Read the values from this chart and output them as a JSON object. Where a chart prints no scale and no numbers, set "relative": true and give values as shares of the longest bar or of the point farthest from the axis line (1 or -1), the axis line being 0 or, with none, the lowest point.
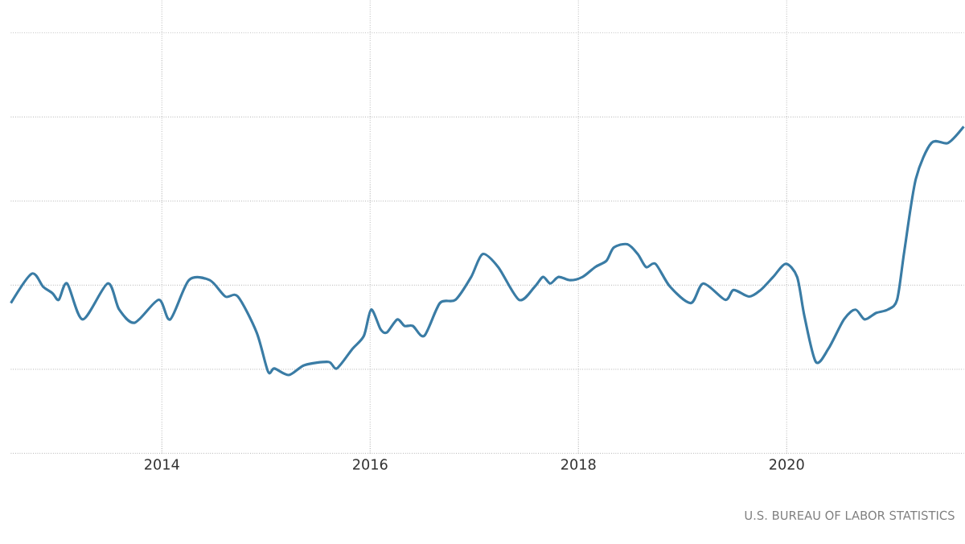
{
  "chart_data": {
    "type": "line",
    "relative": true,
    "grid": true,
    "x": [
      2012.55,
      2012.75,
      2012.86,
      2012.95,
      2013.01,
      2013.09,
      2013.24,
      2013.48,
      2013.59,
      2013.74,
      2013.97,
      2014.08,
      2014.26,
      2014.46,
      2014.61,
      2014.73,
      2014.91,
      2015.02,
      2015.08,
      2015.22,
      2015.37,
      2015.6,
      2015.68,
      2015.83,
      2015.94,
      2016.01,
      2016.1,
      2016.16,
      2016.26,
      2016.33,
      2016.41,
      2016.52,
      2016.67,
      2016.82,
      2016.97,
      2017.08,
      2017.23,
      2017.43,
      2017.58,
      2017.66,
      2017.73,
      2017.81,
      2017.92,
      2018.04,
      2018.16,
      2018.27,
      2018.34,
      2018.47,
      2018.57,
      2018.65,
      2018.74,
      2018.88,
      2019.08,
      2019.2,
      2019.41,
      2019.49,
      2019.64,
      2019.75,
      2019.87,
      2019.99,
      2020.1,
      2020.17,
      2020.28,
      2020.4,
      2020.55,
      2020.66,
      2020.75,
      2020.86,
      2020.97,
      2021.06,
      2021.13,
      2021.24,
      2021.39,
      2021.55,
      2021.7
    ],
    "series": [
      {
        "color": "#3a7ca5",
        "values": [
          0.46,
          0.55,
          0.51,
          0.49,
          0.47,
          0.52,
          0.41,
          0.52,
          0.44,
          0.4,
          0.47,
          0.41,
          0.53,
          0.53,
          0.48,
          0.48,
          0.37,
          0.25,
          0.26,
          0.24,
          0.27,
          0.28,
          0.26,
          0.32,
          0.36,
          0.44,
          0.38,
          0.37,
          0.41,
          0.39,
          0.39,
          0.36,
          0.46,
          0.47,
          0.54,
          0.61,
          0.57,
          0.47,
          0.51,
          0.54,
          0.52,
          0.54,
          0.53,
          0.54,
          0.57,
          0.59,
          0.63,
          0.64,
          0.61,
          0.57,
          0.58,
          0.51,
          0.46,
          0.52,
          0.47,
          0.5,
          0.48,
          0.5,
          0.54,
          0.58,
          0.54,
          0.42,
          0.28,
          0.32,
          0.41,
          0.44,
          0.41,
          0.43,
          0.44,
          0.47,
          0.62,
          0.84,
          0.95,
          0.95,
          1
        ]
      }
    ],
    "xlim": [
      2012.55,
      2021.7
    ],
    "xticks": [
      2014,
      2016,
      2018,
      2020
    ],
    "annotations": [
      "U.S. BUREAU OF LABOR STATISTICS"
    ]
  }
}
